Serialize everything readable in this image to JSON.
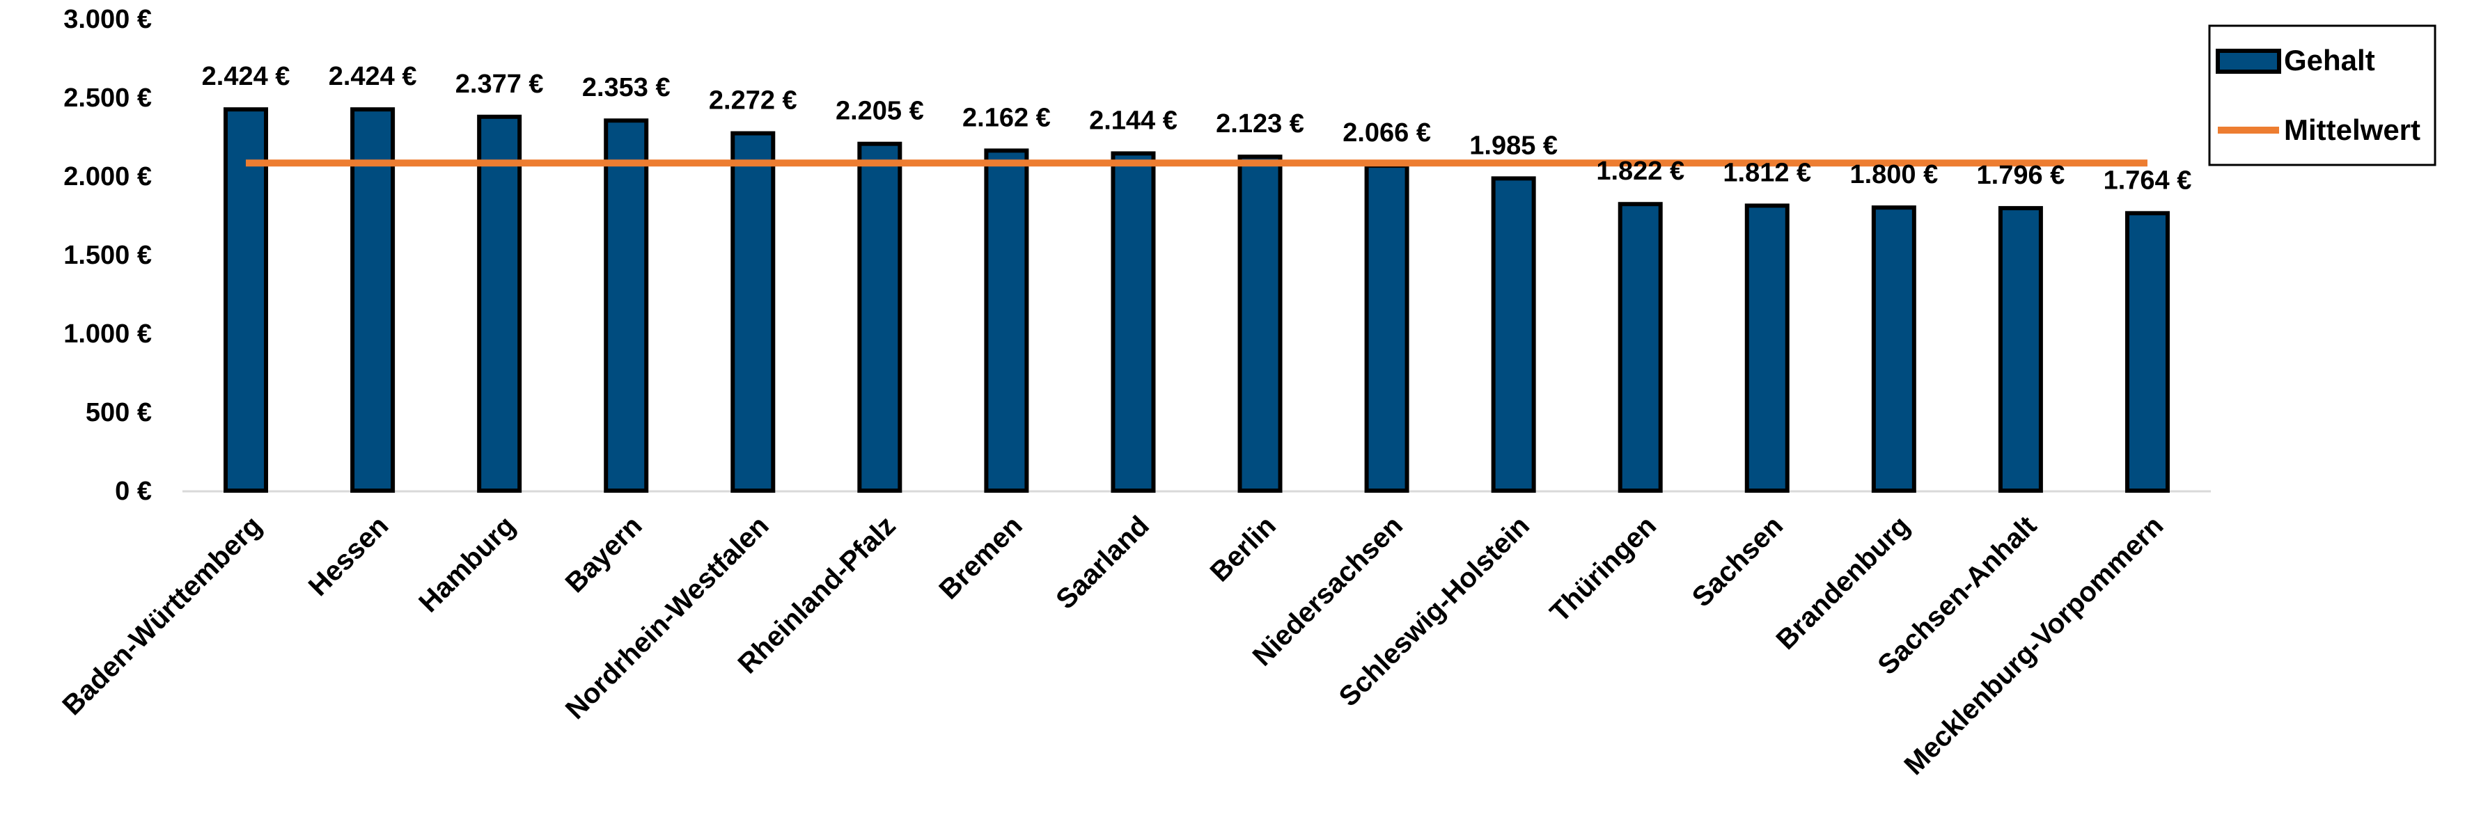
{
  "chart_data": {
    "type": "bar",
    "title": "",
    "xlabel": "",
    "ylabel": "",
    "ylim": [
      0,
      3000
    ],
    "y_ticks": [
      0,
      500,
      1000,
      1500,
      2000,
      2500,
      3000
    ],
    "y_tick_labels": [
      "0 €",
      "500 €",
      "1.000 €",
      "1.500 €",
      "2.000 €",
      "2.500 €",
      "3.000 €"
    ],
    "grid": false,
    "legend_position": "top-right",
    "categories": [
      "Baden-Württemberg",
      "Hessen",
      "Hamburg",
      "Bayern",
      "Nordrhein-Westfalen",
      "Rheinland-Pfalz",
      "Bremen",
      "Saarland",
      "Berlin",
      "Niedersachsen",
      "Schleswig-Holstein",
      "Thüringen",
      "Sachsen",
      "Brandenburg",
      "Sachsen-Anhalt",
      "Mecklenburg-Vorpommern"
    ],
    "series": [
      {
        "name": "Gehalt",
        "kind": "bar",
        "color": "#004C7F",
        "values": [
          2424,
          2424,
          2377,
          2353,
          2272,
          2205,
          2162,
          2144,
          2123,
          2066,
          1985,
          1822,
          1812,
          1800,
          1796,
          1764
        ],
        "labels": [
          "2.424 €",
          "2.424 €",
          "2.377 €",
          "2.353 €",
          "2.272 €",
          "2.205 €",
          "2.162 €",
          "2.144 €",
          "2.123 €",
          "2.066 €",
          "1.985 €",
          "1.822 €",
          "1.812 €",
          "1.800 €",
          "1.796 €",
          "1.764 €"
        ]
      },
      {
        "name": "Mittelwert",
        "kind": "line",
        "color": "#ED7D31",
        "values": [
          2083,
          2083,
          2083,
          2083,
          2083,
          2083,
          2083,
          2083,
          2083,
          2083,
          2083,
          2083,
          2083,
          2083,
          2083,
          2083
        ]
      }
    ]
  }
}
